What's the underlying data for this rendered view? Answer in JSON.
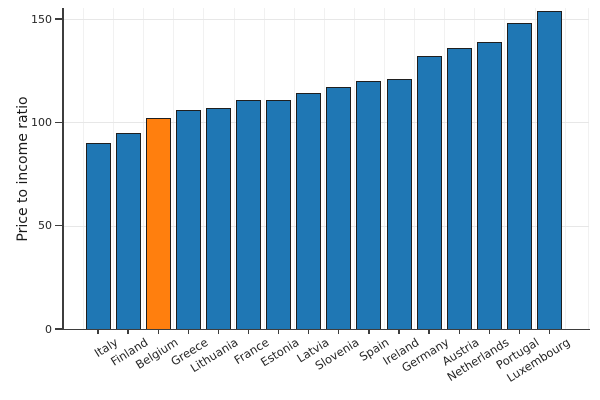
{
  "chart_data": {
    "type": "bar",
    "title": "",
    "ylabel": "Price to income ratio",
    "xlabel": "",
    "categories": [
      "Italy",
      "Finland",
      "Belgium",
      "Greece",
      "Lithuania",
      "France",
      "Estonia",
      "Latvia",
      "Slovenia",
      "Spain",
      "Ireland",
      "Germany",
      "Austria",
      "Netherlands",
      "Portugal",
      "Luxembourg"
    ],
    "values": [
      90,
      95,
      102,
      106,
      107,
      111,
      111,
      114,
      117,
      120,
      121,
      132,
      136,
      139,
      148,
      154
    ],
    "highlighted_category": "Belgium",
    "highlighted_index": 2,
    "yticks": [
      0,
      50,
      100,
      150
    ],
    "ylim": [
      0,
      155
    ],
    "grid": "on",
    "legend": "none",
    "colors": {
      "bar": "#1f77b4",
      "highlight": "#ff7f0e",
      "bar_edge": "#1f1f1f",
      "spine": "#3d3d3d",
      "grid_h": "#e7e7e7",
      "grid_v": "#f1f1f1",
      "text": "#262626"
    }
  }
}
